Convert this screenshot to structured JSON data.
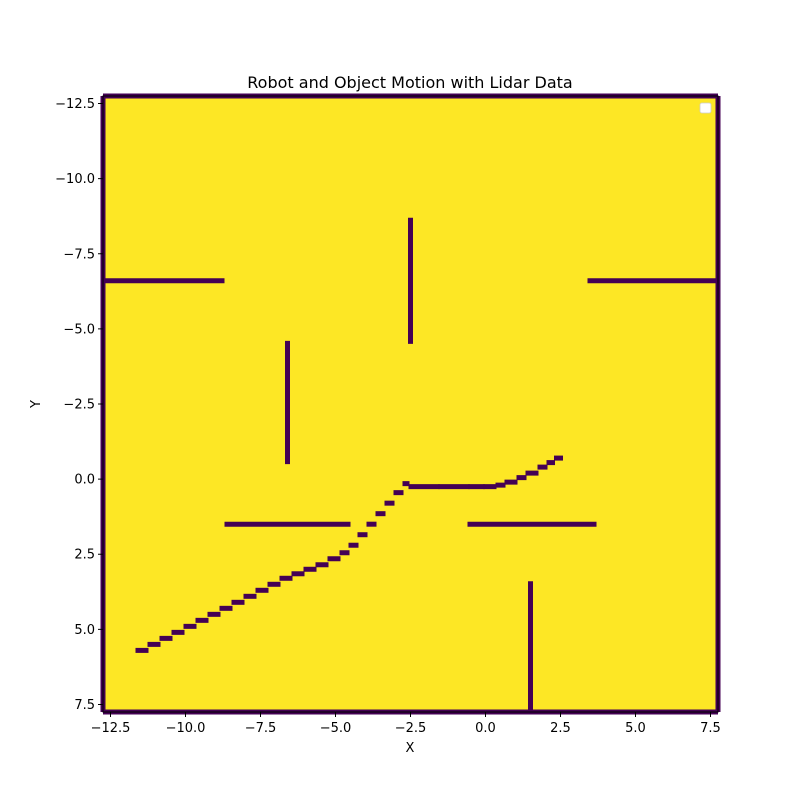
{
  "chart_data": {
    "type": "heatmap",
    "title": "Robot and Object Motion with Lidar Data",
    "xlabel": "X",
    "ylabel": "Y",
    "xlim": [
      -12.75,
      7.75
    ],
    "ylim": [
      7.75,
      -12.75
    ],
    "y_inverted": true,
    "x_ticks": [
      -12.5,
      -10.0,
      -7.5,
      -5.0,
      -2.5,
      0.0,
      2.5,
      5.0,
      7.5
    ],
    "x_tick_labels": [
      "−12.5",
      "−10.0",
      "−7.5",
      "−5.0",
      "−2.5",
      "0.0",
      "2.5",
      "5.0",
      "7.5"
    ],
    "y_ticks": [
      -12.5,
      -10.0,
      -7.5,
      -5.0,
      -2.5,
      0.0,
      2.5,
      5.0,
      7.5
    ],
    "y_tick_labels": [
      "−12.5",
      "−10.0",
      "−7.5",
      "−5.0",
      "−2.5",
      "0.0",
      "2.5",
      "5.0",
      "7.5"
    ],
    "colors": {
      "free_space": "#fde725",
      "occupied": "#440154"
    },
    "walls": [
      {
        "x1": -12.75,
        "y1": -12.75,
        "x2": 7.75,
        "y2": -12.75
      },
      {
        "x1": -12.75,
        "y1": 7.75,
        "x2": 7.75,
        "y2": 7.75
      },
      {
        "x1": -12.75,
        "y1": -12.75,
        "x2": -12.75,
        "y2": 7.75
      },
      {
        "x1": 7.75,
        "y1": -12.75,
        "x2": 7.75,
        "y2": 7.75
      },
      {
        "x1": -12.75,
        "y1": -6.6,
        "x2": -8.7,
        "y2": -6.6
      },
      {
        "x1": 3.4,
        "y1": -6.6,
        "x2": 7.75,
        "y2": -6.6
      },
      {
        "x1": -2.5,
        "y1": -8.7,
        "x2": -2.5,
        "y2": -4.5
      },
      {
        "x1": -6.6,
        "y1": -4.6,
        "x2": -6.6,
        "y2": -0.5
      },
      {
        "x1": -8.7,
        "y1": 1.5,
        "x2": -4.5,
        "y2": 1.5
      },
      {
        "x1": -0.6,
        "y1": 1.5,
        "x2": 3.7,
        "y2": 1.5
      },
      {
        "x1": 1.5,
        "y1": 3.4,
        "x2": 1.5,
        "y2": 7.75
      }
    ],
    "trajectory": [
      [
        -11.6,
        5.7
      ],
      [
        -11.2,
        5.5
      ],
      [
        -10.8,
        5.3
      ],
      [
        -10.4,
        5.1
      ],
      [
        -10.0,
        4.9
      ],
      [
        -9.6,
        4.7
      ],
      [
        -9.2,
        4.5
      ],
      [
        -8.8,
        4.3
      ],
      [
        -8.4,
        4.1
      ],
      [
        -8.0,
        3.9
      ],
      [
        -7.6,
        3.7
      ],
      [
        -7.2,
        3.5
      ],
      [
        -6.8,
        3.3
      ],
      [
        -6.4,
        3.15
      ],
      [
        -6.0,
        3.0
      ],
      [
        -5.6,
        2.85
      ],
      [
        -5.2,
        2.65
      ],
      [
        -4.8,
        2.45
      ],
      [
        -4.5,
        2.2
      ],
      [
        -4.2,
        1.85
      ],
      [
        -3.9,
        1.5
      ],
      [
        -3.6,
        1.15
      ],
      [
        -3.3,
        0.8
      ],
      [
        -3.0,
        0.45
      ],
      [
        -2.7,
        0.15
      ],
      [
        -2.5,
        0.25
      ],
      [
        -1.5,
        0.25
      ],
      [
        -0.5,
        0.25
      ],
      [
        0.0,
        0.25
      ],
      [
        0.4,
        0.2
      ],
      [
        0.7,
        0.1
      ],
      [
        1.1,
        -0.05
      ],
      [
        1.4,
        -0.2
      ],
      [
        1.8,
        -0.4
      ],
      [
        2.1,
        -0.55
      ],
      [
        2.35,
        -0.7
      ]
    ]
  }
}
